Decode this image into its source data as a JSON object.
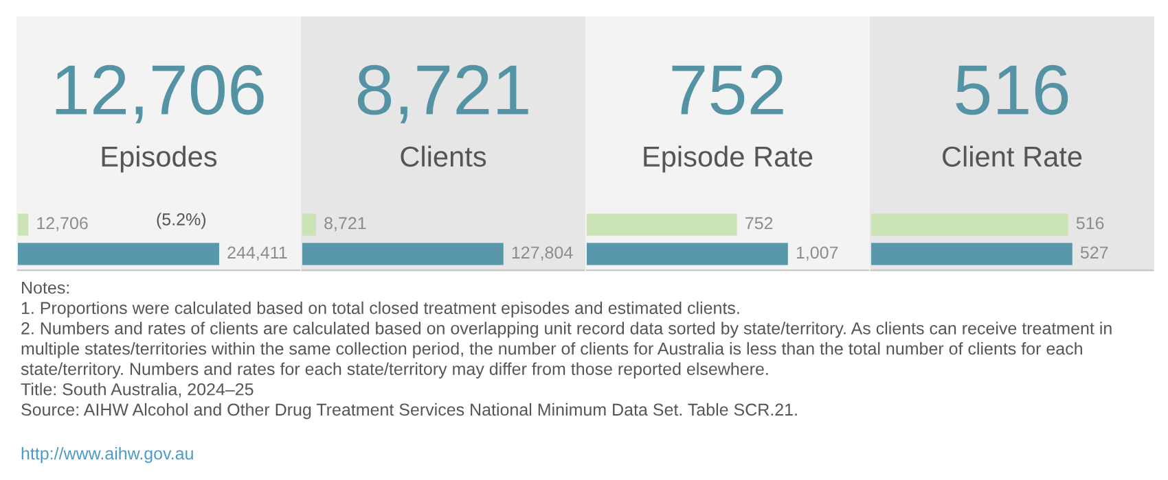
{
  "chart_data": [
    {
      "type": "bar",
      "orientation": "horizontal",
      "title": "12,706",
      "subtitle": "Episodes",
      "categories": [
        null,
        null
      ],
      "values": [
        12706,
        244411
      ],
      "colors": [
        "#cce3b6",
        "#5898aa"
      ],
      "value_labels": [
        "12,706",
        "244,411"
      ],
      "xlim": [
        0,
        342000
      ],
      "annotations": [
        "(5.2%)"
      ]
    },
    {
      "type": "bar",
      "orientation": "horizontal",
      "title": "8,721",
      "subtitle": "Clients",
      "categories": [
        null,
        null
      ],
      "values": [
        8721,
        127804
      ],
      "colors": [
        "#cce3b6",
        "#5898aa"
      ],
      "value_labels": [
        "8,721",
        "127,804"
      ],
      "xlim": [
        0,
        179000
      ]
    },
    {
      "type": "bar",
      "orientation": "horizontal",
      "title": "752",
      "subtitle": "Episode Rate",
      "categories": [
        null,
        null
      ],
      "values": [
        752,
        1007
      ],
      "colors": [
        "#cce3b6",
        "#5898aa"
      ],
      "value_labels": [
        "752",
        "1,007"
      ],
      "xlim": [
        0,
        1410
      ]
    },
    {
      "type": "bar",
      "orientation": "horizontal",
      "title": "516",
      "subtitle": "Client Rate",
      "categories": [
        null,
        null
      ],
      "values": [
        516,
        527
      ],
      "colors": [
        "#cce3b6",
        "#5898aa"
      ],
      "value_labels": [
        "516",
        "527"
      ],
      "xlim": [
        0,
        738
      ],
      "annotations": [
        "Notes:",
        "1. Proportions were calculated based on total closed treatment episodes and estimated clients.",
        "2. Numbers and rates of clients are calculated based on overlapping unit record data sorted by state/territory. As clients can receive treatment in multiple states/territories within the same collection period, the number of clients for Australia is less than the total number of clients for each state/territory. Numbers and rates for each state/territory may differ from those reported elsewhere.",
        "Title: South Australia, 2024–25",
        "Source: AIHW Alcohol and Other Drug Treatment Services National Minimum Data Set. Table SCR.21.",
        "http://www.aihw.gov.au"
      ]
    }
  ]
}
